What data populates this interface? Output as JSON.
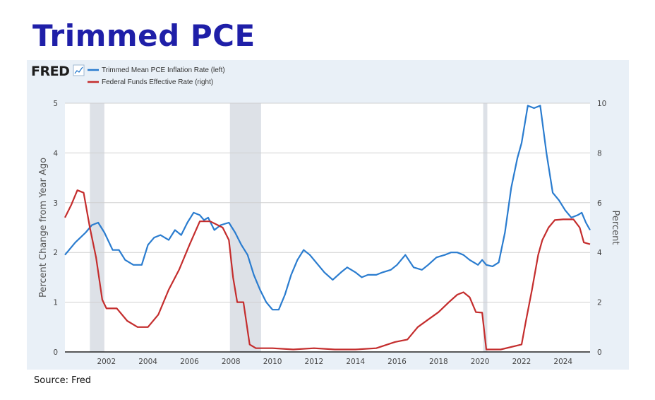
{
  "page": {
    "title": "Trimmed PCE",
    "source": "Source: Fred"
  },
  "chart_data": {
    "type": "line",
    "brand": "FRED",
    "ylabel_left": "Percent Change from Year Ago",
    "ylabel_right": "Percent",
    "xlim": [
      2000.0,
      2025.3
    ],
    "ylim_left": [
      0,
      5
    ],
    "ylim_right": [
      0,
      10
    ],
    "x_ticks": [
      2002,
      2004,
      2006,
      2008,
      2010,
      2012,
      2014,
      2016,
      2018,
      2020,
      2022,
      2024
    ],
    "x_tick_labels": [
      "2002",
      "2004",
      "2006",
      "2008",
      "2010",
      "2012",
      "2014",
      "2016",
      "2018",
      "2020",
      "2022",
      "2024"
    ],
    "y_ticks_left": [
      0,
      1,
      2,
      3,
      4,
      5
    ],
    "y_tick_labels_left": [
      "0",
      "1",
      "2",
      "3",
      "4",
      "5"
    ],
    "y_ticks_right": [
      0,
      2,
      4,
      6,
      8,
      10
    ],
    "y_tick_labels_right": [
      "0",
      "2",
      "4",
      "6",
      "8",
      "10"
    ],
    "grid": "horizontal",
    "legend_position": "top-left",
    "recessions": [
      [
        2001.2,
        2001.9
      ],
      [
        2007.95,
        2009.45
      ],
      [
        2020.15,
        2020.35
      ]
    ],
    "series": [
      {
        "name": "Trimmed Mean PCE Inflation Rate (left)",
        "axis": "left",
        "color": "#2a7ccf",
        "x": [
          2000.0,
          2000.5,
          2001.0,
          2001.3,
          2001.6,
          2001.9,
          2002.3,
          2002.6,
          2002.9,
          2003.3,
          2003.7,
          2004.0,
          2004.3,
          2004.6,
          2005.0,
          2005.3,
          2005.6,
          2005.9,
          2006.2,
          2006.5,
          2006.7,
          2006.9,
          2007.2,
          2007.5,
          2007.9,
          2008.2,
          2008.5,
          2008.8,
          2009.1,
          2009.4,
          2009.7,
          2010.0,
          2010.3,
          2010.6,
          2010.9,
          2011.2,
          2011.5,
          2011.8,
          2012.1,
          2012.5,
          2012.9,
          2013.3,
          2013.6,
          2014.0,
          2014.3,
          2014.6,
          2015.0,
          2015.3,
          2015.7,
          2016.0,
          2016.4,
          2016.8,
          2017.2,
          2017.5,
          2017.9,
          2018.3,
          2018.6,
          2018.9,
          2019.2,
          2019.5,
          2019.9,
          2020.1,
          2020.3,
          2020.6,
          2020.9,
          2021.2,
          2021.5,
          2021.8,
          2022.0,
          2022.3,
          2022.6,
          2022.9,
          2023.2,
          2023.5,
          2023.8,
          2024.1,
          2024.4,
          2024.7,
          2024.9,
          2025.1,
          2025.3
        ],
        "y": [
          1.95,
          2.2,
          2.4,
          2.55,
          2.6,
          2.4,
          2.05,
          2.05,
          1.85,
          1.75,
          1.75,
          2.15,
          2.3,
          2.35,
          2.25,
          2.45,
          2.35,
          2.6,
          2.8,
          2.75,
          2.65,
          2.7,
          2.45,
          2.55,
          2.6,
          2.4,
          2.15,
          1.95,
          1.55,
          1.25,
          1.0,
          0.85,
          0.85,
          1.15,
          1.55,
          1.85,
          2.05,
          1.95,
          1.8,
          1.6,
          1.45,
          1.6,
          1.7,
          1.6,
          1.5,
          1.55,
          1.55,
          1.6,
          1.65,
          1.75,
          1.95,
          1.7,
          1.65,
          1.75,
          1.9,
          1.95,
          2.0,
          2.0,
          1.95,
          1.85,
          1.75,
          1.85,
          1.75,
          1.72,
          1.8,
          2.4,
          3.3,
          3.9,
          4.2,
          4.95,
          4.9,
          4.95,
          4.0,
          3.2,
          3.05,
          2.85,
          2.7,
          2.75,
          2.8,
          2.6,
          2.45
        ]
      },
      {
        "name": "Federal Funds Effective Rate (right)",
        "axis": "right",
        "color": "#c42d2d",
        "x": [
          2000.0,
          2000.3,
          2000.6,
          2000.9,
          2001.2,
          2001.5,
          2001.8,
          2002.0,
          2002.5,
          2003.0,
          2003.5,
          2004.0,
          2004.5,
          2005.0,
          2005.5,
          2006.0,
          2006.5,
          2007.0,
          2007.6,
          2007.9,
          2008.1,
          2008.3,
          2008.6,
          2008.9,
          2009.2,
          2010.0,
          2011.0,
          2012.0,
          2013.0,
          2014.0,
          2015.0,
          2015.9,
          2016.5,
          2017.0,
          2017.5,
          2018.0,
          2018.5,
          2018.9,
          2019.2,
          2019.5,
          2019.8,
          2020.1,
          2020.3,
          2021.0,
          2022.0,
          2022.2,
          2022.5,
          2022.8,
          2023.0,
          2023.3,
          2023.6,
          2024.0,
          2024.5,
          2024.8,
          2025.0,
          2025.3
        ],
        "y": [
          5.4,
          5.9,
          6.5,
          6.4,
          5.0,
          3.8,
          2.1,
          1.75,
          1.75,
          1.25,
          1.0,
          1.0,
          1.5,
          2.5,
          3.3,
          4.3,
          5.25,
          5.25,
          5.0,
          4.5,
          3.0,
          2.0,
          2.0,
          0.3,
          0.15,
          0.15,
          0.1,
          0.15,
          0.1,
          0.1,
          0.15,
          0.4,
          0.5,
          1.0,
          1.3,
          1.6,
          2.0,
          2.3,
          2.4,
          2.2,
          1.6,
          1.58,
          0.1,
          0.1,
          0.3,
          1.2,
          2.5,
          3.9,
          4.5,
          5.0,
          5.3,
          5.33,
          5.33,
          5.0,
          4.4,
          4.33
        ]
      }
    ]
  }
}
